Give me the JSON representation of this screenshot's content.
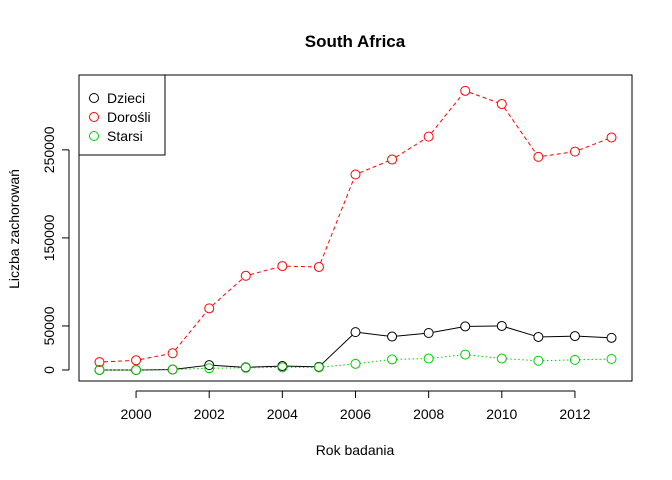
{
  "chart_data": {
    "type": "line",
    "title": "South Africa",
    "xlabel": "Rok badania",
    "ylabel": "Liczba zachorowań",
    "x": [
      1999,
      2000,
      2001,
      2002,
      2003,
      2004,
      2005,
      2006,
      2007,
      2008,
      2009,
      2010,
      2011,
      2012,
      2013
    ],
    "xlim": [
      1998.44,
      2013.56
    ],
    "ylim": [
      -12500,
      335000
    ],
    "xticks": [
      "2000",
      "2002",
      "2004",
      "2006",
      "2008",
      "2010",
      "2012"
    ],
    "yticks": [
      "0",
      "50000",
      "150000",
      "250000"
    ],
    "legend_position": "top-left",
    "series": [
      {
        "name": "Dzieci",
        "color": "#000000",
        "line_style": "solid",
        "values": [
          0,
          0,
          500,
          5500,
          3000,
          4500,
          3500,
          43000,
          38000,
          42000,
          49500,
          50000,
          37500,
          38500,
          36500
        ]
      },
      {
        "name": "Dorośli",
        "color": "#ff0000",
        "line_style": "dashed",
        "values": [
          9000,
          11000,
          19000,
          70000,
          107000,
          118000,
          117000,
          222000,
          239000,
          265000,
          317000,
          302000,
          242000,
          248000,
          264000
        ]
      },
      {
        "name": "Starsi",
        "color": "#00cd00",
        "line_style": "dotted",
        "values": [
          0,
          0,
          500,
          2000,
          2500,
          3000,
          3000,
          7000,
          12000,
          13000,
          17500,
          13000,
          10500,
          11500,
          12500
        ]
      }
    ]
  }
}
